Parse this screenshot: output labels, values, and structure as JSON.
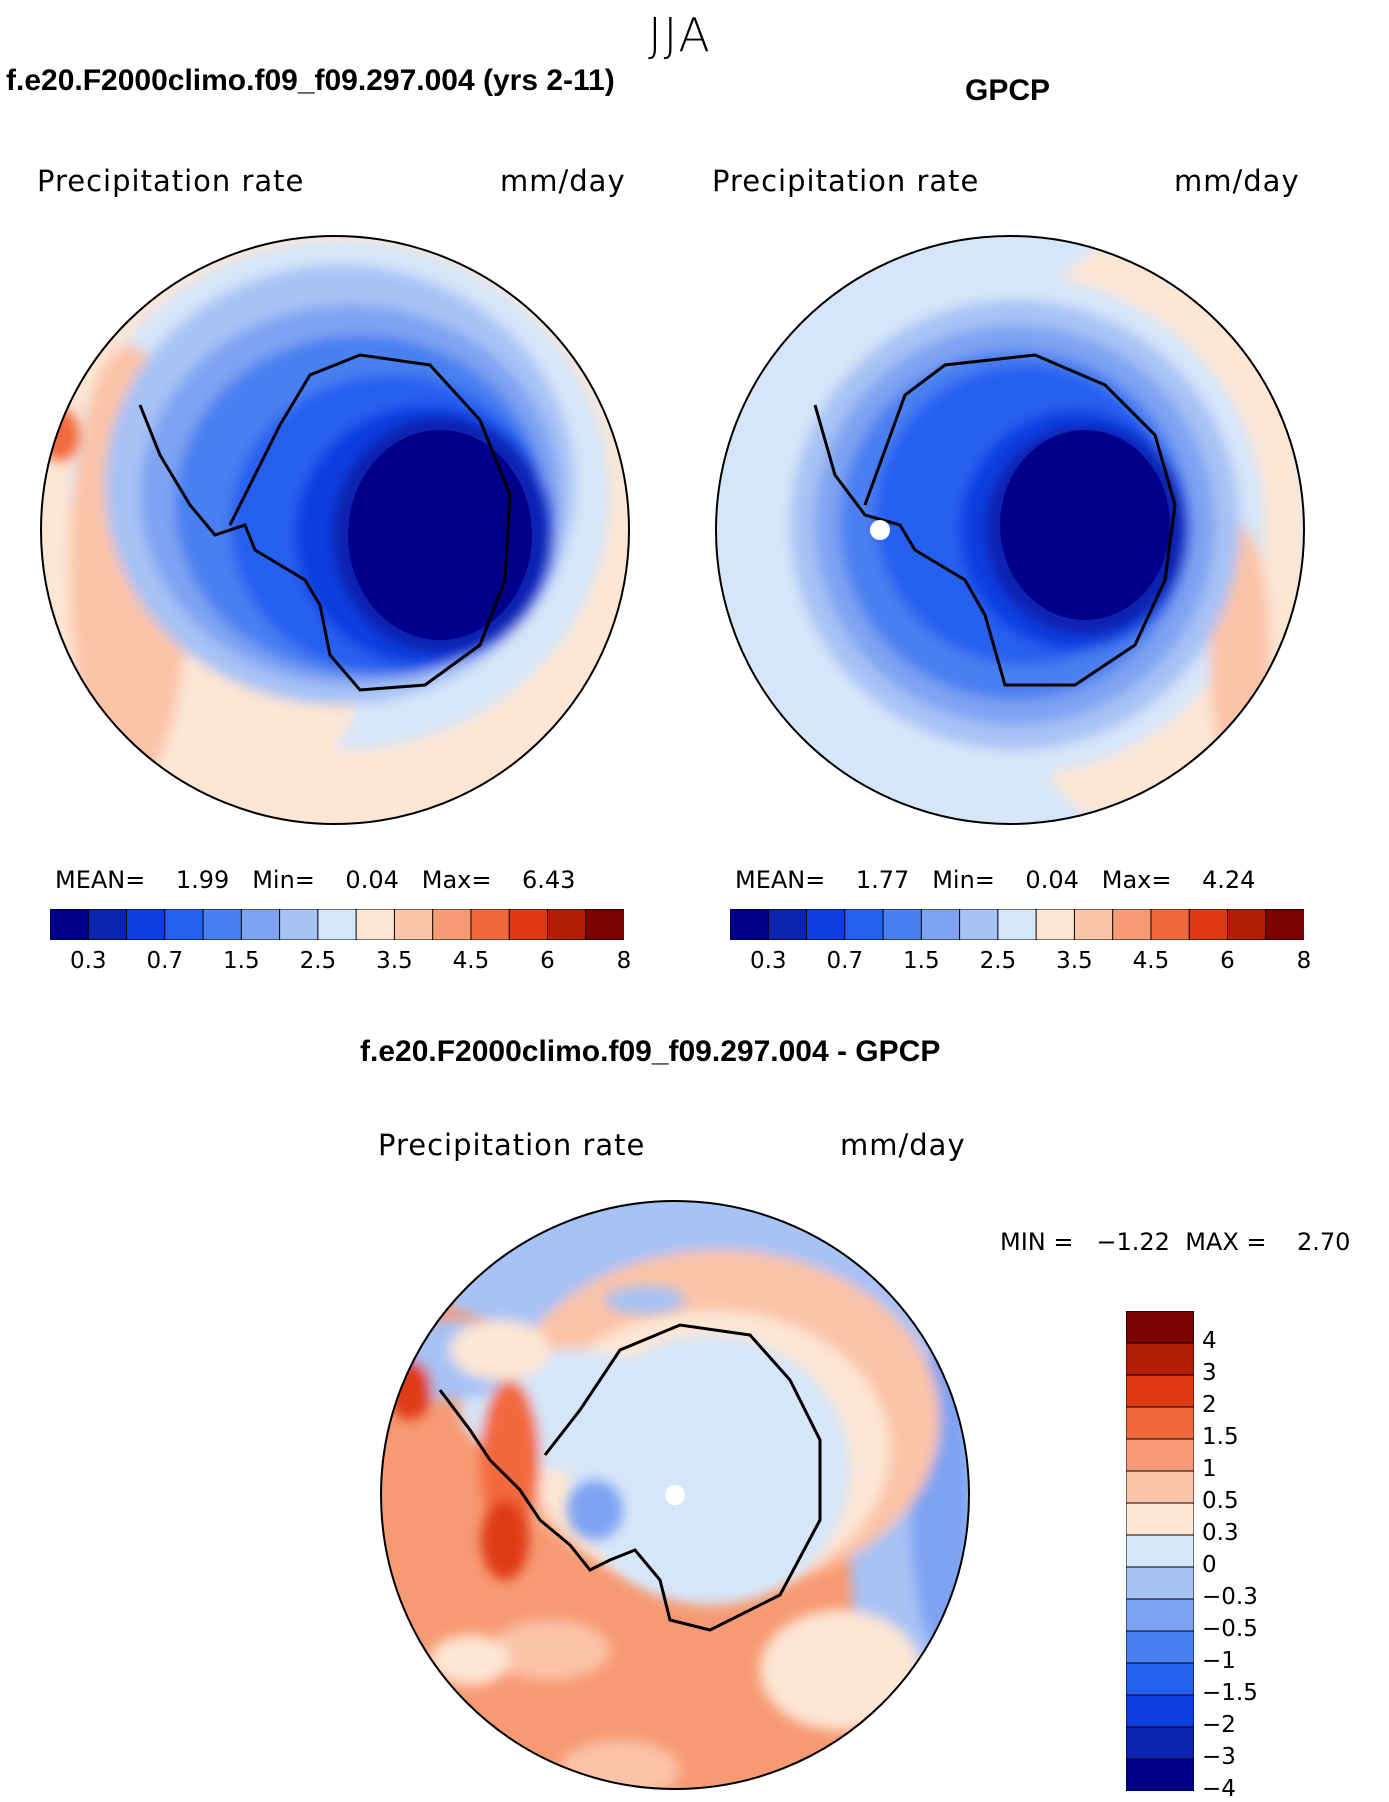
{
  "season": "JJA",
  "panels": [
    {
      "title": "f.e20.F2000climo.f09_f09.297.004 (yrs 2-11)",
      "variable": "Precipitation rate",
      "units": "mm/day",
      "stats": {
        "mean_label": "MEAN=",
        "mean": "1.99",
        "min_label": "Min=",
        "min": "0.04",
        "max_label": "Max=",
        "max": "6.43"
      }
    },
    {
      "title": "GPCP",
      "variable": "Precipitation rate",
      "units": "mm/day",
      "stats": {
        "mean_label": "MEAN=",
        "mean": "1.77",
        "min_label": "Min=",
        "min": "0.04",
        "max_label": "Max=",
        "max": "4.24"
      }
    },
    {
      "title": "f.e20.F2000climo.f09_f09.297.004 - GPCP",
      "variable": "Precipitation rate",
      "units": "mm/day",
      "stats": {
        "min_label": "MIN =",
        "min": "−1.22",
        "max_label": "MAX =",
        "max": "2.70"
      }
    }
  ],
  "colorbar_abs": {
    "colors": [
      "#00008b",
      "#0a24b0",
      "#0d3ee0",
      "#2660f0",
      "#4a7ff0",
      "#7ea3f2",
      "#a7c2f5",
      "#d6e6f9",
      "#fde6d4",
      "#fbc3a8",
      "#f79a73",
      "#f2693d",
      "#df3a12",
      "#b51e06",
      "#7b0000"
    ],
    "labels": [
      "0.3",
      "0.7",
      "1.5",
      "2.5",
      "3.5",
      "4.5",
      "6",
      "8"
    ]
  },
  "colorbar_diff": {
    "colors": [
      "#7b0000",
      "#b51e06",
      "#df3a12",
      "#f2693d",
      "#f79a73",
      "#fbc3a8",
      "#fde6d4",
      "#d6e6f9",
      "#a7c2f5",
      "#7ea3f2",
      "#4a7ff0",
      "#2660f0",
      "#0d3ee0",
      "#0a24b0",
      "#00008b"
    ],
    "labels": [
      "4",
      "3",
      "2",
      "1.5",
      "1",
      "0.5",
      "0.3",
      "0",
      "−0.3",
      "−0.5",
      "−1",
      "−1.5",
      "−2",
      "−3",
      "−4"
    ]
  }
}
